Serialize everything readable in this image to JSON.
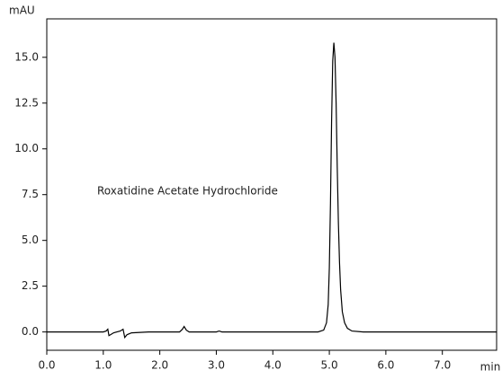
{
  "chart_data": {
    "type": "line",
    "y_unit": "mAU",
    "x_unit": "min",
    "annotation": "Roxatidine Acetate Hydrochloride",
    "x": [
      0.0,
      1.0,
      1.05,
      1.08,
      1.1,
      1.13,
      1.18,
      1.3,
      1.35,
      1.38,
      1.42,
      1.5,
      1.8,
      2.35,
      2.4,
      2.43,
      2.47,
      2.52,
      3.0,
      3.05,
      3.1,
      4.8,
      4.9,
      4.95,
      4.98,
      5.0,
      5.02,
      5.04,
      5.06,
      5.08,
      5.1,
      5.12,
      5.14,
      5.16,
      5.18,
      5.2,
      5.23,
      5.27,
      5.32,
      5.4,
      5.6,
      7.96
    ],
    "series": [
      {
        "color": "#000000",
        "values": [
          0,
          0,
          0.05,
          0.15,
          -0.2,
          -0.15,
          -0.05,
          0.05,
          0.15,
          -0.3,
          -0.15,
          -0.05,
          0,
          0,
          0.15,
          0.3,
          0.1,
          0,
          0,
          0.05,
          0,
          0,
          0.1,
          0.5,
          1.5,
          3.5,
          7,
          11.5,
          14.8,
          15.8,
          15,
          12.5,
          9,
          6,
          3.8,
          2.3,
          1.1,
          0.5,
          0.2,
          0.05,
          0,
          0
        ]
      }
    ],
    "xlim": [
      0,
      7.96
    ],
    "ylim": [
      -1,
      17.1
    ],
    "xticks": [
      {
        "value": 0,
        "label": "0.0"
      },
      {
        "value": 1,
        "label": "1.0"
      },
      {
        "value": 2,
        "label": "2.0"
      },
      {
        "value": 3,
        "label": "3.0"
      },
      {
        "value": 4,
        "label": "4.0"
      },
      {
        "value": 5,
        "label": "5.0"
      },
      {
        "value": 6,
        "label": "6.0"
      },
      {
        "value": 7,
        "label": "7.0"
      }
    ],
    "yticks": [
      {
        "value": 0,
        "label": "0.0"
      },
      2.5,
      {
        "value": 5,
        "label": "5.0"
      },
      7.5,
      {
        "value": 10,
        "label": "10.0"
      },
      12.5,
      {
        "value": 15,
        "label": "15.0"
      }
    ]
  }
}
